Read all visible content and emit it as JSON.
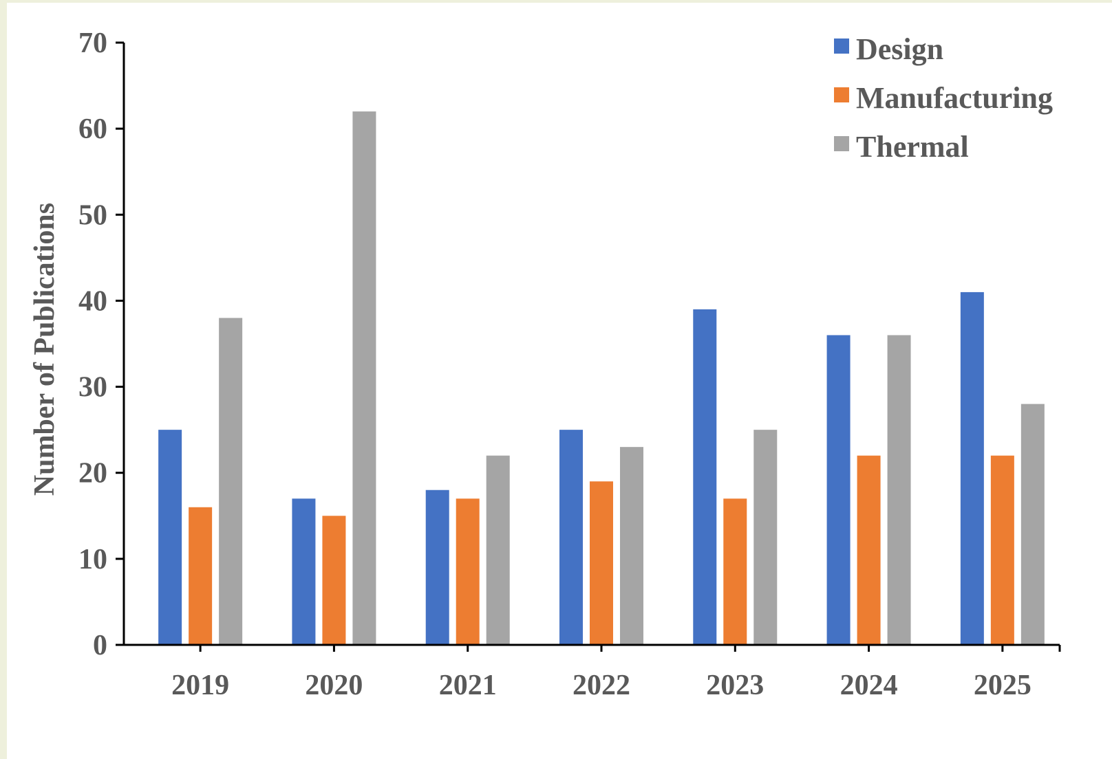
{
  "chart_data": {
    "type": "bar",
    "categories": [
      "2019",
      "2020",
      "2021",
      "2022",
      "2023",
      "2024",
      "2025"
    ],
    "series": [
      {
        "name": "Design",
        "color": "#4472c4",
        "values": [
          25,
          17,
          18,
          25,
          39,
          36,
          41
        ]
      },
      {
        "name": "Manufacturing",
        "color": "#ed7d31",
        "values": [
          16,
          15,
          17,
          19,
          17,
          22,
          22
        ]
      },
      {
        "name": "Thermal",
        "color": "#a5a5a5",
        "values": [
          38,
          62,
          22,
          23,
          25,
          36,
          28
        ]
      }
    ],
    "title": "",
    "xlabel": "",
    "ylabel": "Number of Publications",
    "ylim": [
      0,
      70
    ],
    "yticks": [
      0,
      10,
      20,
      30,
      40,
      50,
      60,
      70
    ],
    "grid": false,
    "legend_position": "top-right"
  }
}
